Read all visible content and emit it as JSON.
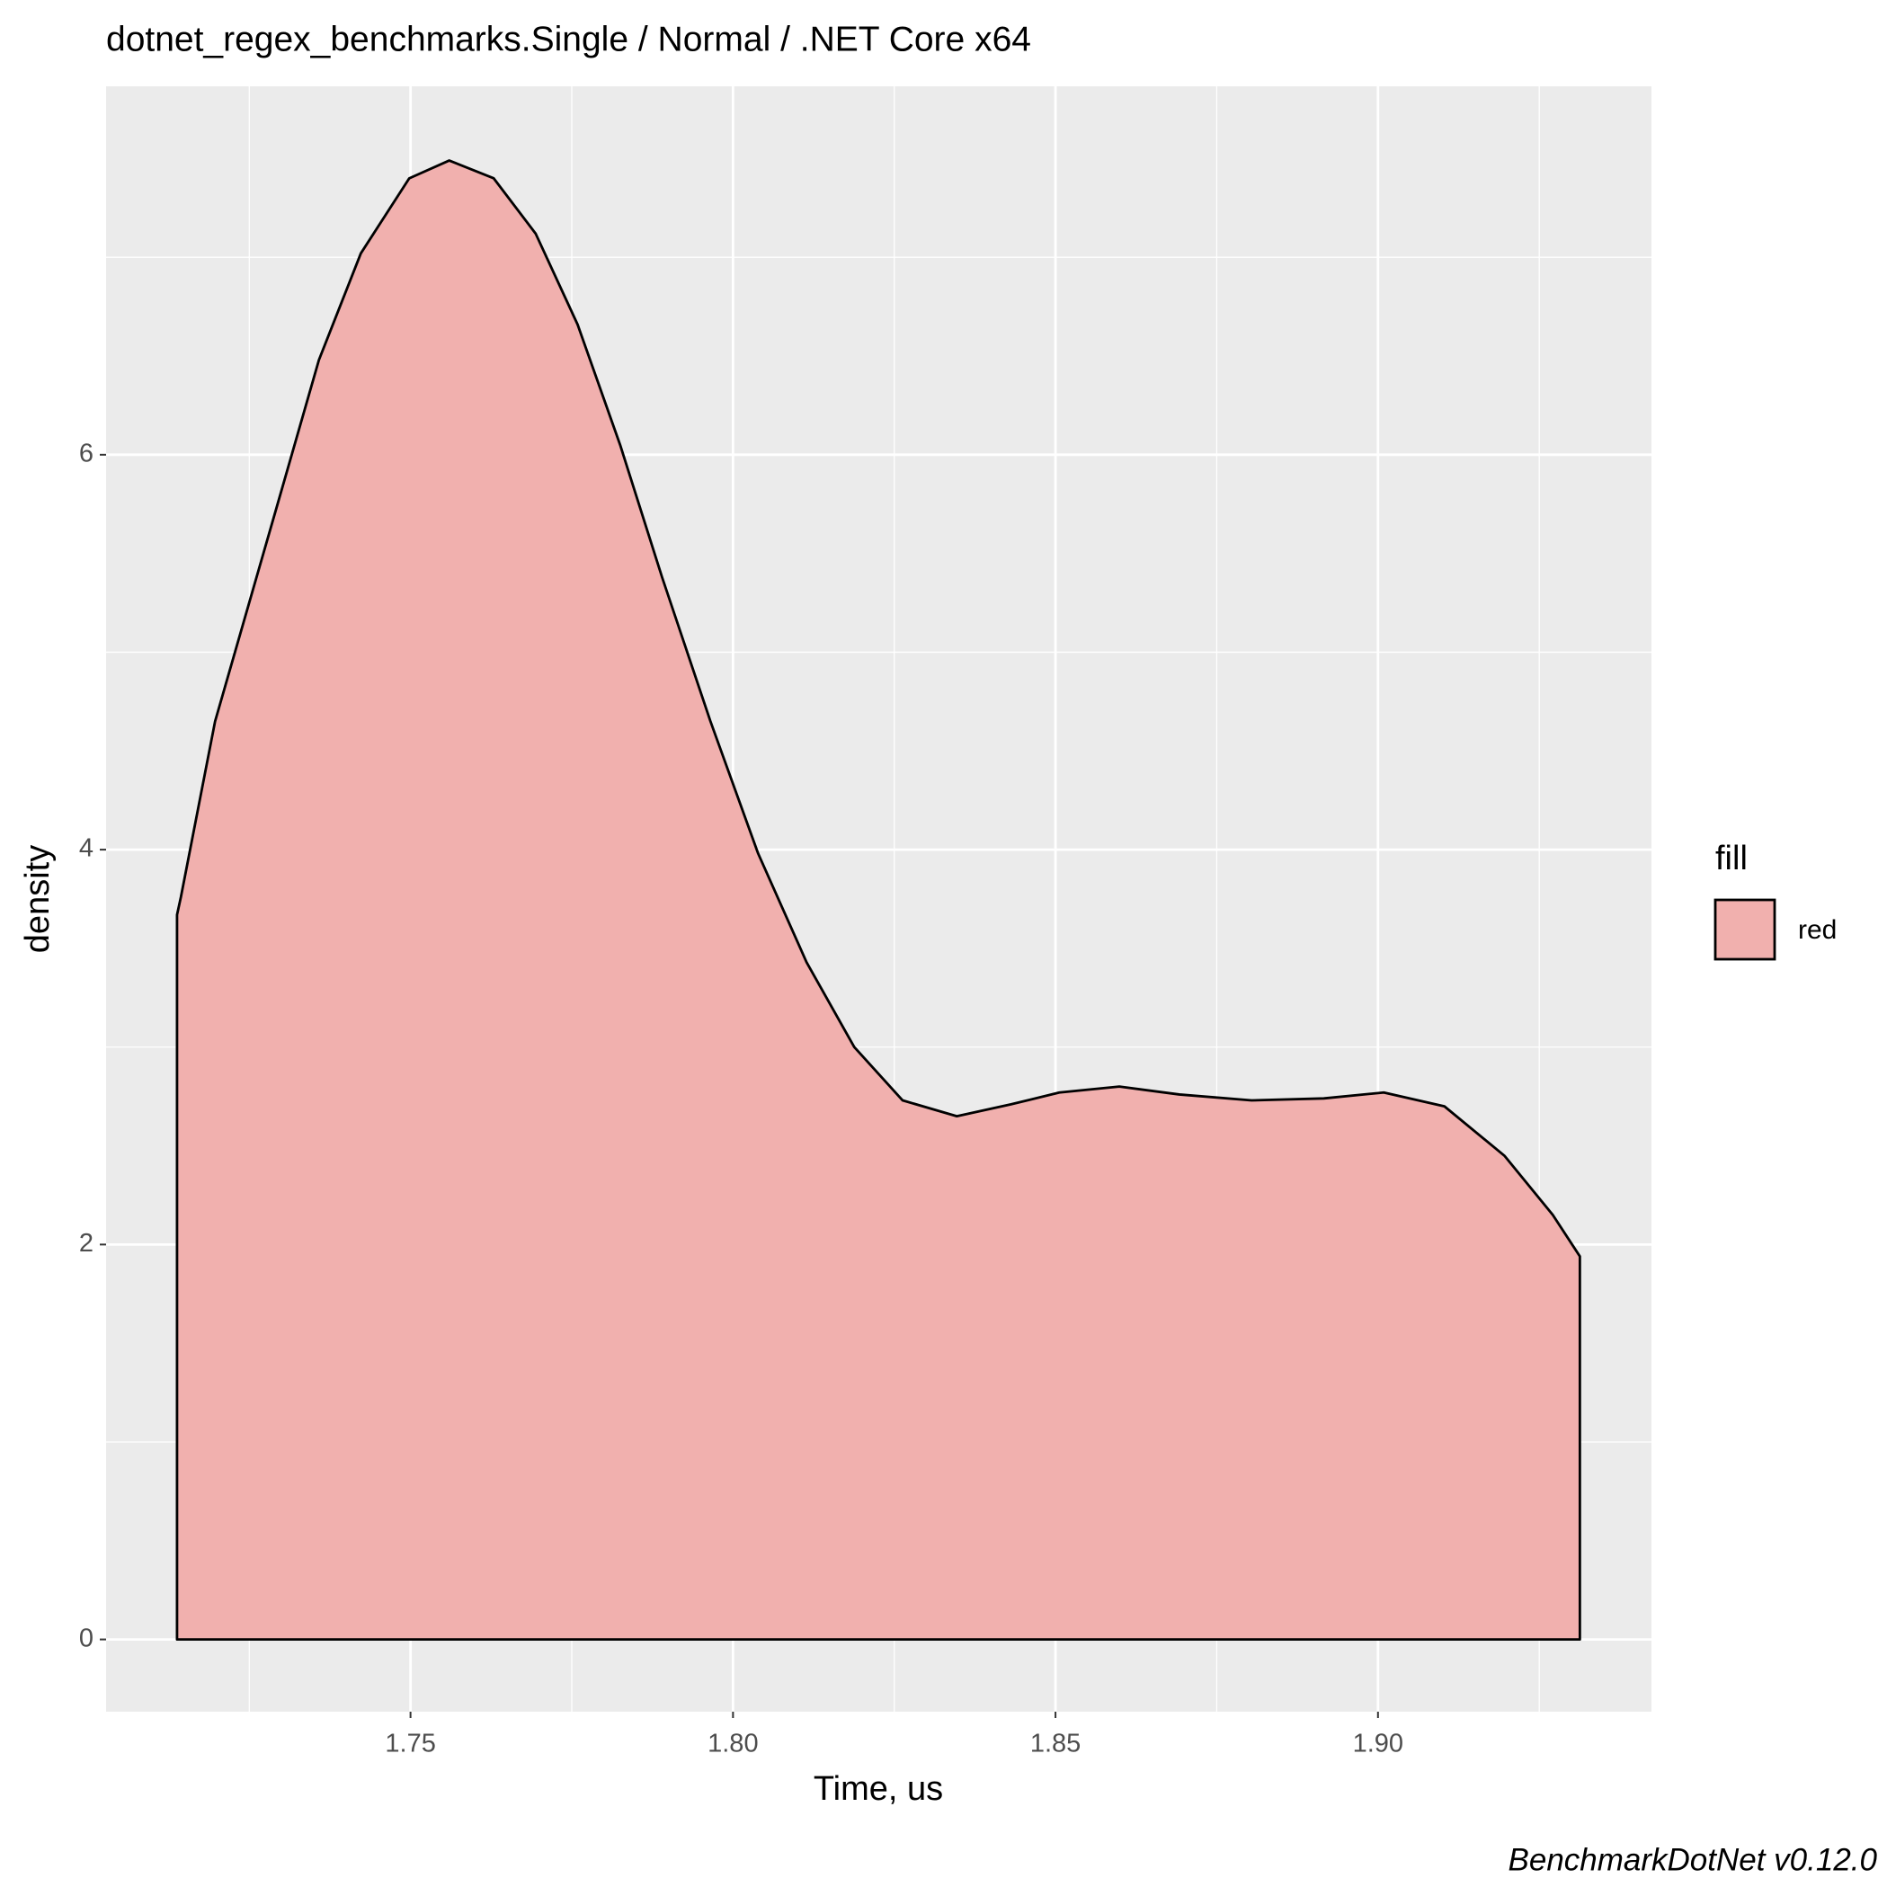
{
  "chart_data": {
    "type": "density",
    "title": "dotnet_regex_benchmarks.Single / Normal / .NET Core x64",
    "x_label": "Time, us",
    "y_label": "density",
    "caption": "BenchmarkDotNet v0.12.0",
    "legend_title": "fill",
    "legend_position": "right",
    "xlim": [
      1.7028,
      1.9424
    ],
    "ylim": [
      -0.366,
      7.866
    ],
    "xticks": [
      {
        "value": 1.75,
        "label": "1.75"
      },
      {
        "value": 1.8,
        "label": "1.80"
      },
      {
        "value": 1.85,
        "label": "1.85"
      },
      {
        "value": 1.9,
        "label": "1.90"
      }
    ],
    "yticks": [
      0,
      2,
      4,
      6
    ],
    "x_minor_breaks": [
      1.725,
      1.775,
      1.825,
      1.875,
      1.925
    ],
    "y_minor_breaks": [
      1,
      3,
      5,
      7
    ],
    "grid": true,
    "series": [
      {
        "name": "red",
        "color": "#F1B0AE",
        "x": [
          1.7138,
          1.7138,
          1.7144,
          1.7197,
          1.7293,
          1.7358,
          1.7423,
          1.7498,
          1.756,
          1.7629,
          1.7694,
          1.7759,
          1.7825,
          1.789,
          1.7965,
          1.8039,
          1.8114,
          1.8188,
          1.8263,
          1.8347,
          1.8431,
          1.8506,
          1.8599,
          1.8692,
          1.8804,
          1.8916,
          1.9009,
          1.9103,
          1.9196,
          1.9271,
          1.9313,
          1.9313
        ],
        "values": [
          0,
          3.67,
          3.76,
          4.65,
          5.74,
          6.48,
          7.02,
          7.4,
          7.49,
          7.4,
          7.12,
          6.66,
          6.05,
          5.38,
          4.65,
          3.98,
          3.43,
          3.0,
          2.73,
          2.65,
          2.71,
          2.77,
          2.8,
          2.76,
          2.73,
          2.74,
          2.77,
          2.7,
          2.45,
          2.15,
          1.94,
          0
        ]
      }
    ]
  }
}
